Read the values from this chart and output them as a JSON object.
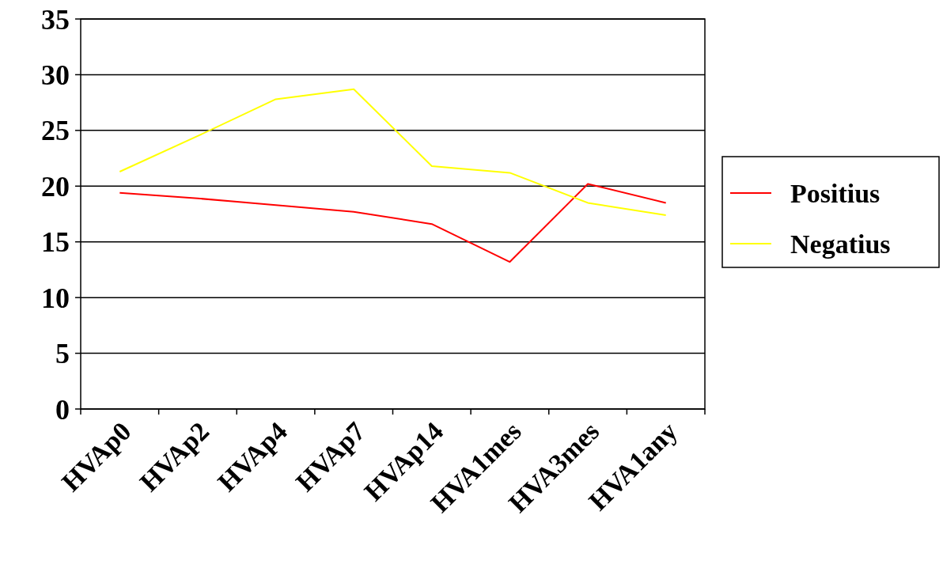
{
  "chart_data": {
    "type": "line",
    "categories": [
      "HVAp0",
      "HVAp2",
      "HVAp4",
      "HVAp7",
      "HVAp14",
      "HVA1mes",
      "HVA3mes",
      "HVA1any"
    ],
    "series": [
      {
        "name": "Positius",
        "color": "#ff0000",
        "values": [
          19.4,
          18.9,
          18.3,
          17.7,
          16.6,
          13.2,
          20.2,
          18.5
        ]
      },
      {
        "name": "Negatius",
        "color": "#ffff00",
        "values": [
          21.3,
          24.5,
          27.8,
          28.7,
          21.8,
          21.2,
          18.5,
          17.4
        ]
      }
    ],
    "ylim": [
      0,
      35
    ],
    "yticks": [
      0,
      5,
      10,
      15,
      20,
      25,
      30,
      35
    ],
    "grid": "y",
    "legend": "right",
    "marker": "none",
    "line_style": "solid"
  }
}
